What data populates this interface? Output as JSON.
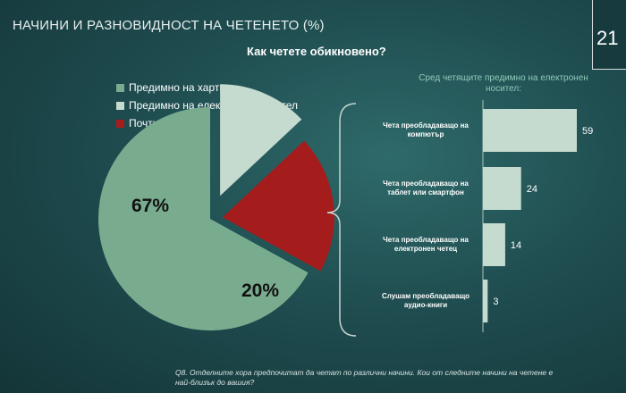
{
  "slide": {
    "title": "НАЧИНИ И РАЗНОВИДНОСТ НА ЧЕТЕНЕТО (%)",
    "page_number": "21",
    "question": "Как четете обикновено?",
    "footnote": "Q8. Отделните хора предпочитат да четат по различни начини. Кои от следните начини на четене е най-близък до вашия?"
  },
  "colors": {
    "paper": "#79ac8f",
    "electronic": "#c5dbcf",
    "none": "#a51c1c",
    "bars": "#c5dbcf",
    "brace": "#c5d4d0"
  },
  "chart_data": [
    {
      "type": "pie",
      "title": "Как четете обикновено?",
      "legend_position": "top-left",
      "slices": [
        {
          "name": "Предимно на хартия",
          "value": 67,
          "label": "67%",
          "color": "#79ac8f"
        },
        {
          "name": "Предимно на електронен носител",
          "value": 13,
          "label": "13%",
          "color": "#c5dbcf"
        },
        {
          "name": "Почти / не чета",
          "value": 20,
          "label": "20%",
          "color": "#a51c1c"
        }
      ]
    },
    {
      "type": "bar",
      "orientation": "horizontal",
      "title": "Сред четящите предимно на електронен носител:",
      "categories": [
        "Чета преобладаващо на компютър",
        "Чета преобладаващо на таблет или смартфон",
        "Чета преобладаващо на електронен четец",
        "Слушам преобладаващо аудио-книги"
      ],
      "values": [
        59,
        24,
        14,
        3
      ],
      "xlim": [
        0,
        60
      ],
      "grid": false
    }
  ]
}
